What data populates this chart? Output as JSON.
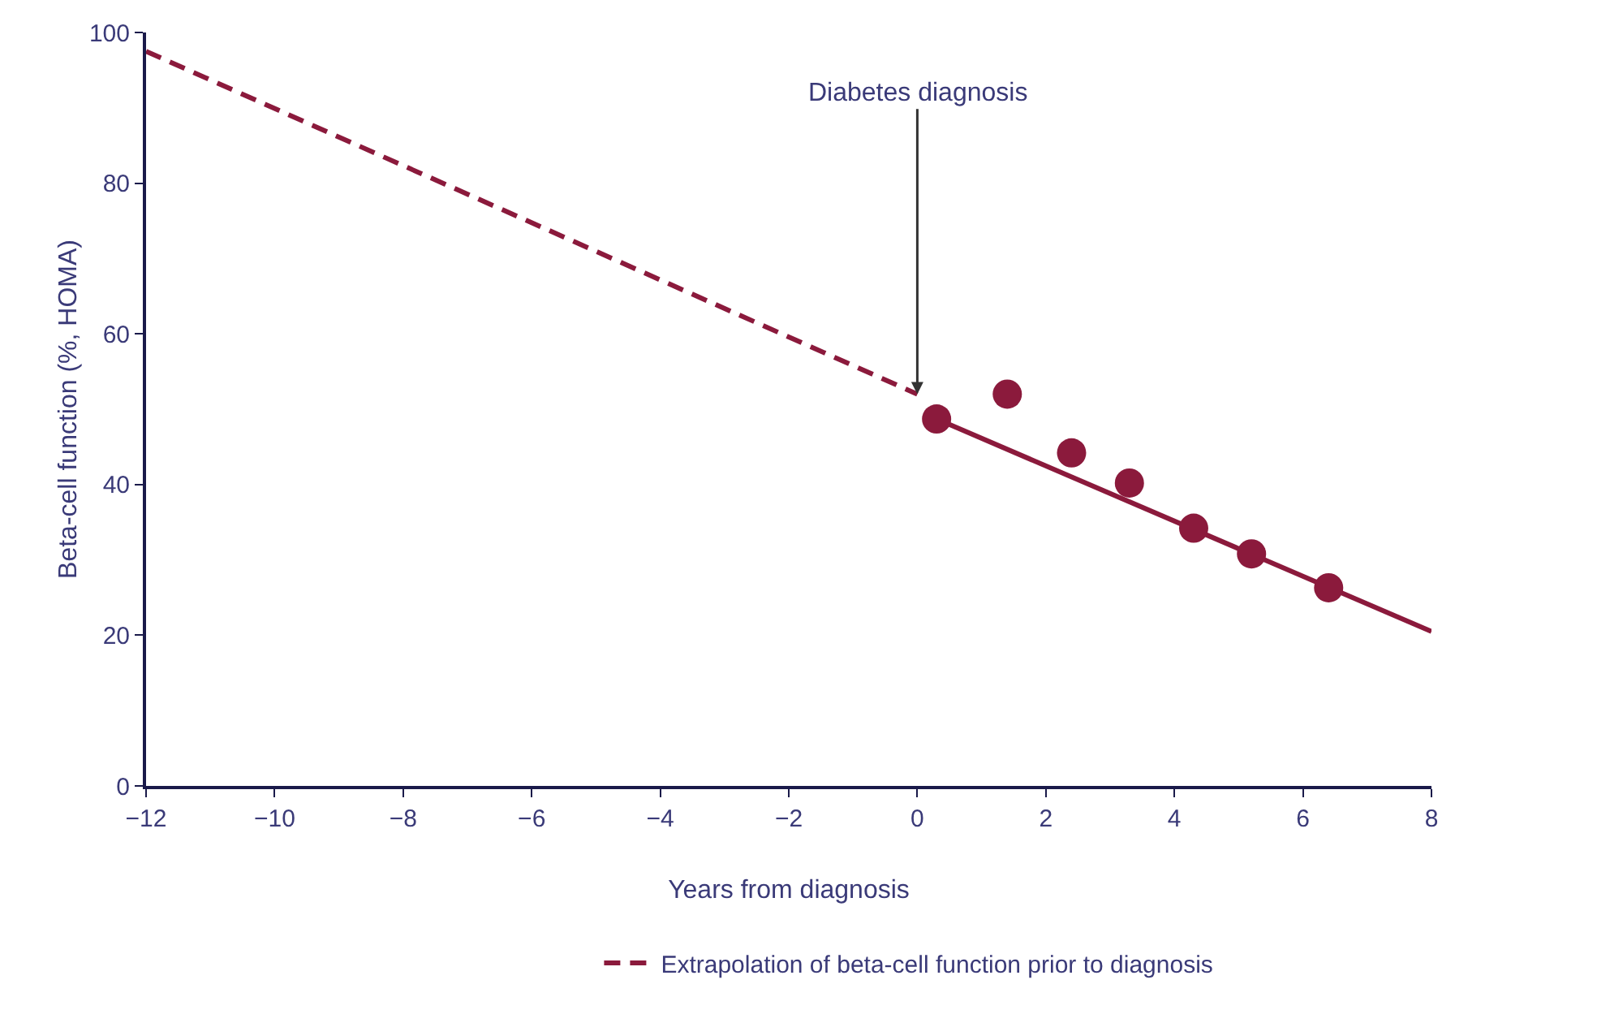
{
  "chart_data": {
    "type": "line",
    "xlabel": "Years from diagnosis",
    "ylabel": "Beta-cell function (%, HOMA)",
    "xlim": [
      -12,
      8
    ],
    "xticks": [
      {
        "value": -12,
        "label": "−12"
      },
      {
        "value": -10,
        "label": "−10"
      },
      {
        "value": -8,
        "label": "−8"
      },
      {
        "value": -6,
        "label": "−6"
      },
      {
        "value": -4,
        "label": "−4"
      },
      {
        "value": -2,
        "label": "−2"
      },
      0,
      2,
      4,
      6,
      8
    ],
    "ylim": [
      0,
      100
    ],
    "yticks": [
      0,
      20,
      40,
      60,
      80,
      100
    ],
    "grid": false,
    "legend": "bottom",
    "annotations": [
      {
        "text": "Diabetes diagnosis",
        "x": 0,
        "y": 52
      }
    ],
    "series": [
      {
        "name": "Extrapolation of beta-cell function prior to diagnosis",
        "line_style": "dashed",
        "marker": "none",
        "color": "#8b1a3c",
        "x": [
          -12,
          0
        ],
        "values": [
          97.5,
          52
        ]
      },
      {
        "line_style": "solid",
        "marker": "none",
        "color": "#8b1a3c",
        "x": [
          0.3,
          8
        ],
        "values": [
          48.7,
          20.5
        ]
      },
      {
        "type": "scatter",
        "marker": "circle",
        "color": "#8b1a3c",
        "x": [
          0.3,
          1.4,
          2.4,
          3.3,
          4.3,
          5.2,
          6.4
        ],
        "values": [
          48.7,
          52,
          44.2,
          40.2,
          34.2,
          30.8,
          26.3
        ]
      }
    ]
  }
}
